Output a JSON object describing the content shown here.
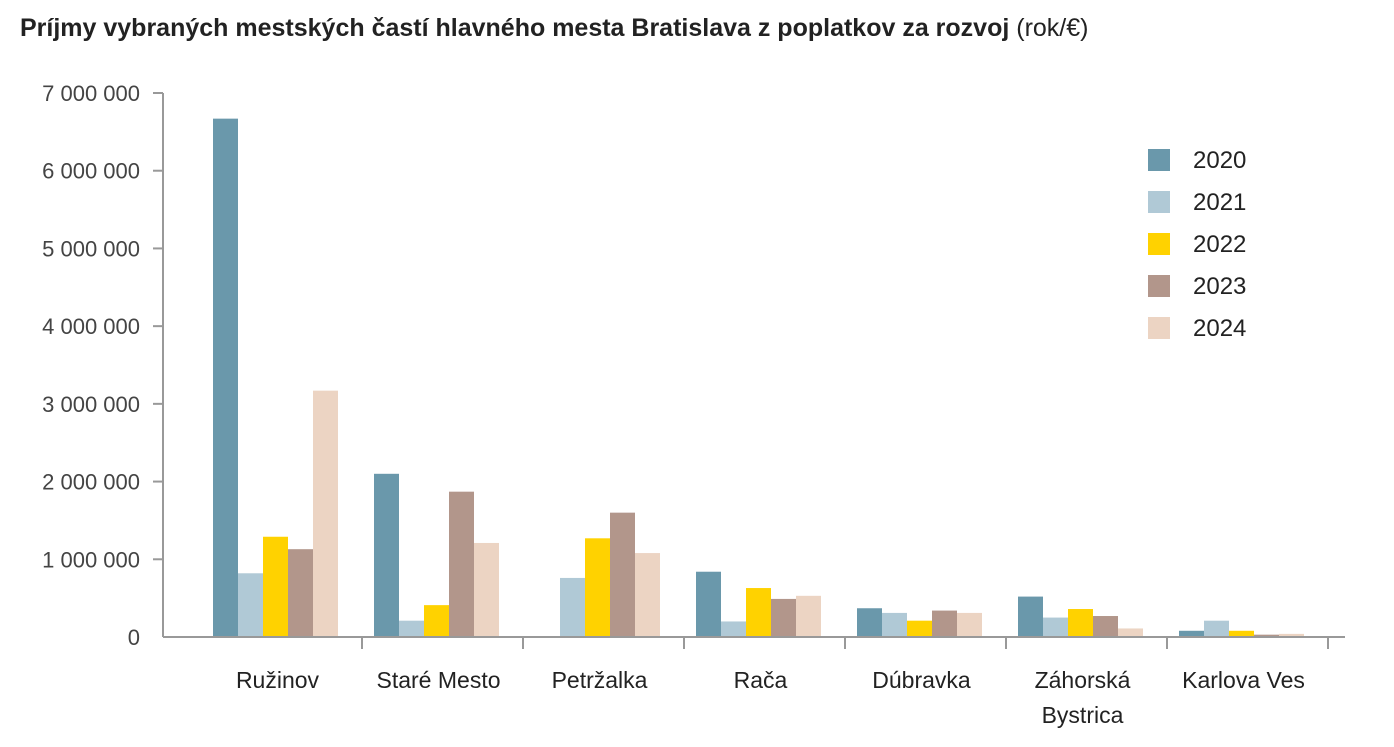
{
  "chart_data": {
    "type": "bar",
    "title": "Príjmy vybraných mestských častí hlavného mesta Bratislava z poplatkov za rozvoj",
    "title_unit": "(rok/€)",
    "xlabel": "",
    "ylabel": "",
    "ylim": [
      0,
      7000000
    ],
    "yticks": [
      0,
      1000000,
      2000000,
      3000000,
      4000000,
      5000000,
      6000000,
      7000000
    ],
    "ytick_labels": [
      "0",
      "1 000 000",
      "2 000 000",
      "3 000 000",
      "4 000 000",
      "5 000 000",
      "6 000 000",
      "7 000 000"
    ],
    "categories": [
      "Ružinov",
      "Staré Mesto",
      "Petržalka",
      "Rača",
      "Dúbravka",
      "Záhorská Bystrica",
      "Karlova Ves"
    ],
    "category_lines": [
      [
        "Ružinov"
      ],
      [
        "Staré Mesto"
      ],
      [
        "Petržalka"
      ],
      [
        "Rača"
      ],
      [
        "Dúbravka"
      ],
      [
        "Záhorská",
        "Bystrica"
      ],
      [
        "Karlova Ves"
      ]
    ],
    "legend_position": "top-right",
    "grid": false,
    "series": [
      {
        "name": "2020",
        "color": "#6a98ab",
        "values": [
          6670000,
          2100000,
          0,
          840000,
          370000,
          520000,
          80000
        ]
      },
      {
        "name": "2021",
        "color": "#b0c9d6",
        "values": [
          820000,
          210000,
          760000,
          200000,
          310000,
          250000,
          210000
        ]
      },
      {
        "name": "2022",
        "color": "#ffd200",
        "values": [
          1290000,
          410000,
          1270000,
          630000,
          210000,
          360000,
          80000
        ]
      },
      {
        "name": "2023",
        "color": "#b2968b",
        "values": [
          1130000,
          1870000,
          1600000,
          490000,
          340000,
          270000,
          30000
        ]
      },
      {
        "name": "2024",
        "color": "#ecd4c3",
        "values": [
          3170000,
          1210000,
          1080000,
          530000,
          310000,
          110000,
          40000
        ]
      }
    ]
  }
}
